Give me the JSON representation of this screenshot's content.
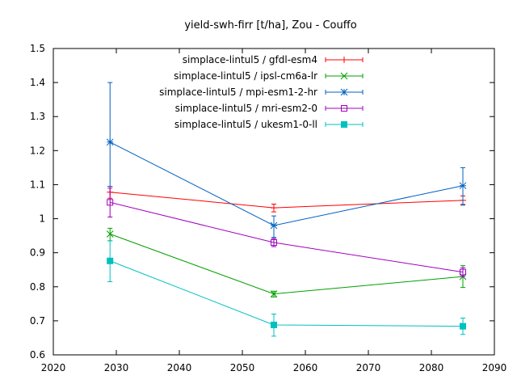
{
  "chart_data": {
    "type": "line",
    "title": "yield-swh-firr [t/ha], Zou - Couffo",
    "xlabel": "",
    "ylabel": "",
    "xlim": [
      2020,
      2090
    ],
    "ylim": [
      0.6,
      1.5
    ],
    "xticks": [
      2020,
      2030,
      2040,
      2050,
      2060,
      2070,
      2080,
      2090
    ],
    "yticks": [
      0.6,
      0.7,
      0.8,
      0.9,
      1,
      1.1,
      1.2,
      1.3,
      1.4,
      1.5
    ],
    "grid": false,
    "legend_position": "top-right",
    "x": [
      2029,
      2055,
      2085
    ],
    "series": [
      {
        "name": "simplace-lintul5 / gfdl-esm4",
        "color": "#ff0000",
        "marker": "plus",
        "values": [
          1.078,
          1.032,
          1.054
        ],
        "err_low": [
          1.06,
          1.02,
          1.042
        ],
        "err_high": [
          1.095,
          1.043,
          1.067
        ]
      },
      {
        "name": "simplace-lintul5 / ipsl-cm6a-lr",
        "color": "#00a000",
        "marker": "x",
        "values": [
          0.955,
          0.779,
          0.83
        ],
        "err_low": [
          0.935,
          0.77,
          0.798
        ],
        "err_high": [
          0.972,
          0.787,
          0.862
        ]
      },
      {
        "name": "simplace-lintul5 / mpi-esm1-2-hr",
        "color": "#0060c0",
        "marker": "star",
        "values": [
          1.225,
          0.98,
          1.097
        ],
        "err_low": [
          1.095,
          0.945,
          1.04
        ],
        "err_high": [
          1.4,
          1.008,
          1.15
        ]
      },
      {
        "name": "simplace-lintul5 / mri-esm2-0",
        "color": "#a000c0",
        "marker": "square-open",
        "values": [
          1.048,
          0.93,
          0.843
        ],
        "err_low": [
          1.005,
          0.918,
          0.83
        ],
        "err_high": [
          1.09,
          0.942,
          0.856
        ]
      },
      {
        "name": "simplace-lintul5 / ukesm1-0-ll",
        "color": "#00c0c0",
        "marker": "square-filled",
        "values": [
          0.876,
          0.688,
          0.684
        ],
        "err_low": [
          0.815,
          0.655,
          0.66
        ],
        "err_high": [
          0.935,
          0.72,
          0.708
        ]
      }
    ]
  }
}
